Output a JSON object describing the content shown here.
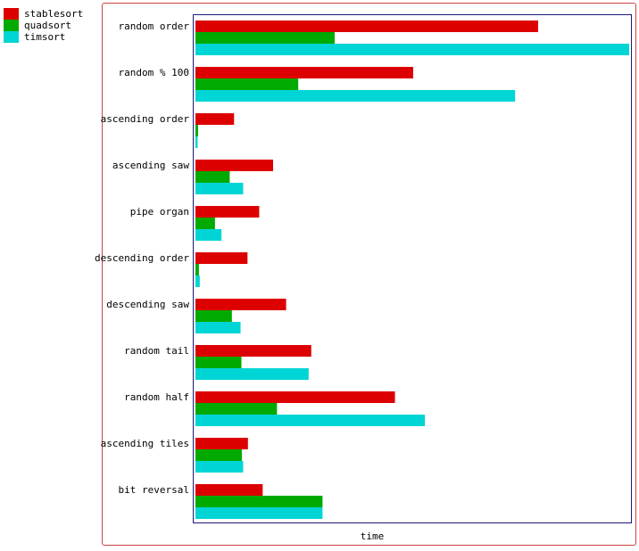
{
  "chart_data": {
    "type": "bar",
    "orientation": "horizontal",
    "xlabel": "time",
    "ylabel": "",
    "legend_position": "top-left",
    "categories": [
      "random order",
      "random % 100",
      "ascending order",
      "ascending saw",
      "pipe organ",
      "descending order",
      "descending saw",
      "random tail",
      "random half",
      "ascending tiles",
      "bit reversal"
    ],
    "series": [
      {
        "name": "stablesort",
        "color": "#dd0000",
        "values": [
          0.79,
          0.502,
          0.089,
          0.179,
          0.147,
          0.12,
          0.209,
          0.267,
          0.46,
          0.121,
          0.155
        ]
      },
      {
        "name": "quadsort",
        "color": "#00aa00",
        "values": [
          0.321,
          0.237,
          0.006,
          0.079,
          0.045,
          0.008,
          0.084,
          0.106,
          0.188,
          0.107,
          0.293
        ]
      },
      {
        "name": "timsort",
        "color": "#00d5d5",
        "values": [
          1.0,
          0.737,
          0.005,
          0.11,
          0.06,
          0.01,
          0.104,
          0.261,
          0.529,
          0.11,
          0.293
        ]
      }
    ],
    "xlim": [
      0,
      1.0
    ],
    "grid": false
  }
}
